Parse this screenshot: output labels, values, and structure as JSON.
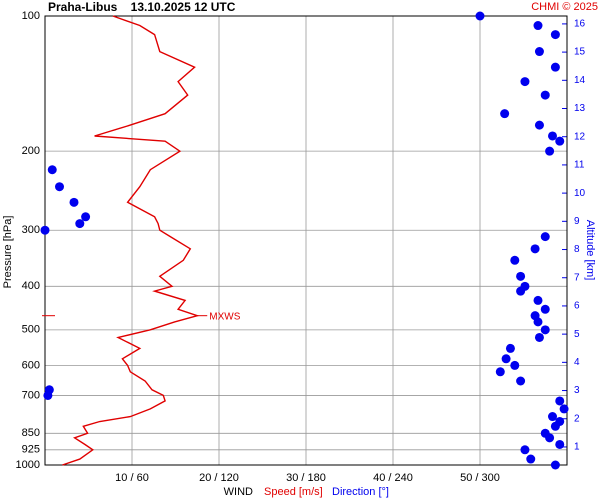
{
  "chart_data": {
    "type": "wind-profile",
    "title": "Praha-Libus    13.10.2025 12 UTC",
    "credit": "CHMI © 2025",
    "ylabel": "Pressure [hPa]",
    "y2label": "Altitude [km]",
    "xlabel": "WIND",
    "y": [
      1000,
      970,
      925,
      900,
      870,
      850,
      820,
      800,
      780,
      750,
      720,
      700,
      680,
      650,
      620,
      600,
      580,
      550,
      520,
      500,
      480,
      465,
      450,
      430,
      410,
      400,
      380,
      350,
      330,
      310,
      300,
      290,
      280,
      260,
      240,
      220,
      200,
      190,
      185,
      175,
      165,
      150,
      140,
      130,
      120,
      110,
      105,
      100
    ],
    "series": [
      {
        "name": "Speed [m/s]",
        "color": "#e00000",
        "style": "line",
        "values": [
          2.0,
          4.0,
          5.5,
          4.6,
          3.4,
          4.9,
          4.4,
          6.3,
          9.8,
          12.1,
          13.8,
          13.6,
          12.3,
          11.5,
          9.8,
          9.5,
          8.9,
          10.9,
          8.4,
          12.1,
          14.9,
          17.5,
          15.3,
          16.1,
          12.6,
          14.6,
          13.2,
          15.9,
          16.7,
          14.4,
          13.2,
          13.0,
          12.6,
          9.5,
          10.9,
          12.1,
          15.5,
          13.8,
          5.7,
          9.8,
          13.8,
          16.4,
          15.3,
          17.2,
          13.2,
          12.6,
          10.9,
          7.8
        ]
      },
      {
        "name": "Direction [°]",
        "color": "#0000ee",
        "style": "dots",
        "axis": "x2",
        "values": [
          352,
          335,
          331,
          355,
          348,
          345,
          352,
          355,
          350,
          358,
          355,
          2,
          3,
          328,
          314,
          324,
          318,
          321,
          341,
          345,
          340,
          338,
          345,
          340,
          328,
          331,
          328,
          324,
          338,
          345,
          0,
          24,
          28,
          20,
          10,
          5,
          348,
          355,
          350,
          341,
          317,
          345,
          331,
          352,
          341,
          352,
          340,
          300
        ]
      }
    ],
    "xlim": [
      0,
      60
    ],
    "x2lim": [
      0,
      360
    ],
    "xticks": [
      {
        "value": 10,
        "label": "10 / 60"
      },
      {
        "value": 20,
        "label": "20 / 120"
      },
      {
        "value": 30,
        "label": "30 / 180"
      },
      {
        "value": 40,
        "label": "40 / 240"
      },
      {
        "value": 50,
        "label": "50 / 300"
      }
    ],
    "ylim": [
      1000,
      100
    ],
    "yscale": "log",
    "yticks": [
      100,
      200,
      300,
      400,
      500,
      600,
      700,
      850,
      925,
      1000
    ],
    "y2lim": [
      0.36,
      16.28
    ],
    "y2ticks": [
      1,
      2,
      3,
      4,
      5,
      6,
      7,
      8,
      9,
      10,
      11,
      12,
      13,
      14,
      15,
      16
    ],
    "y2color": "#0000ee",
    "grid": true,
    "annotations": [
      {
        "text": "MXWS",
        "y": 465,
        "color": "#e00000"
      }
    ]
  }
}
